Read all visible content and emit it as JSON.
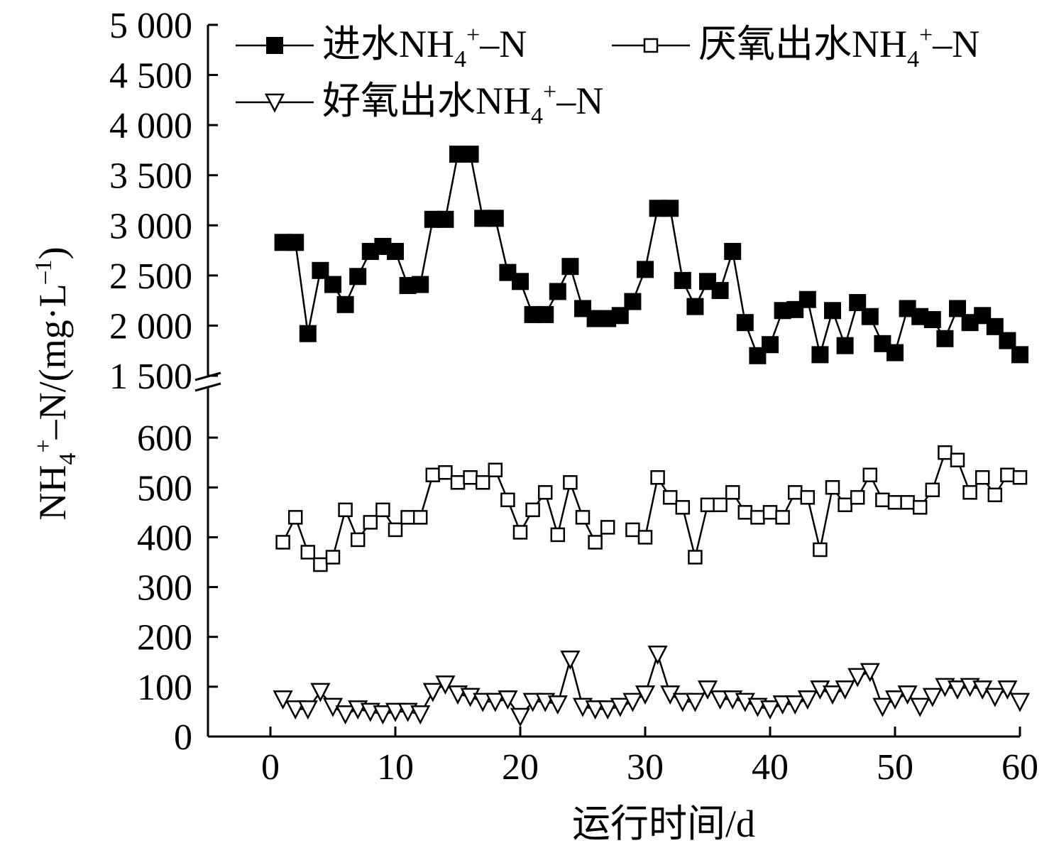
{
  "chart_data": {
    "type": "line",
    "xlabel": "运行时间/d",
    "ylabel": {
      "main": "NH",
      "sub": "4",
      "sup": "+",
      "rest": "–N/(mg·L",
      "exp": "–1",
      "close": ")"
    },
    "x_ticks": [
      "0",
      "10",
      "20",
      "30",
      "40",
      "50",
      "60"
    ],
    "xlim": [
      -5,
      60
    ],
    "y_lower": {
      "ylim": [
        0,
        700
      ],
      "ticks": [
        "0",
        "100",
        "200",
        "300",
        "400",
        "500",
        "600"
      ]
    },
    "y_upper": {
      "ylim": [
        1500,
        5000
      ],
      "ticks": [
        "1 500",
        "2 000",
        "2 500",
        "3 000",
        "3 500",
        "4 000",
        "4 500",
        "5 000"
      ]
    },
    "axis_break": true,
    "legend_position": "top-left",
    "series": [
      {
        "name": "进水NH4+–N",
        "label": {
          "main": "进水NH",
          "sub": "4",
          "sup": "+",
          "rest": "–N"
        },
        "marker": "filled-square",
        "axis": "upper",
        "x": [
          1,
          2,
          3,
          4,
          5,
          6,
          7,
          8,
          9,
          10,
          11,
          12,
          13,
          14,
          15,
          16,
          17,
          18,
          19,
          20,
          21,
          22,
          23,
          24,
          25,
          26,
          27,
          28,
          29,
          30,
          31,
          32,
          33,
          34,
          35,
          36,
          37,
          38,
          39,
          40,
          41,
          42,
          43,
          44,
          45,
          46,
          47,
          48,
          49,
          50,
          51,
          52,
          53,
          54,
          55,
          56,
          57,
          58,
          59,
          60
        ],
        "y": [
          2830,
          2830,
          1920,
          2550,
          2410,
          2210,
          2490,
          2740,
          2790,
          2740,
          2400,
          2410,
          3060,
          3060,
          3710,
          3710,
          3070,
          3070,
          2530,
          2440,
          2110,
          2110,
          2340,
          2590,
          2170,
          2070,
          2070,
          2100,
          2240,
          2560,
          3170,
          3170,
          2450,
          2190,
          2440,
          2350,
          2740,
          2030,
          1700,
          1810,
          2150,
          2160,
          2260,
          1710,
          2150,
          1800,
          2230,
          2090,
          1820,
          1730,
          2170,
          2090,
          2060,
          1870,
          2170,
          2030,
          2100,
          1990,
          1850,
          1710
        ]
      },
      {
        "name": "厌氧出水NH4+–N",
        "label": {
          "main": "厌氧出水NH",
          "sub": "4",
          "sup": "+",
          "rest": "–N"
        },
        "marker": "open-square",
        "axis": "lower",
        "x": [
          1,
          2,
          3,
          4,
          5,
          6,
          7,
          8,
          9,
          10,
          11,
          12,
          13,
          14,
          15,
          16,
          17,
          18,
          19,
          20,
          21,
          22,
          23,
          24,
          25,
          26,
          27,
          null,
          29,
          30,
          31,
          32,
          33,
          34,
          35,
          36,
          37,
          38,
          39,
          40,
          41,
          42,
          43,
          44,
          45,
          46,
          47,
          48,
          49,
          50,
          51,
          52,
          53,
          54,
          55,
          56,
          57,
          58,
          59,
          60
        ],
        "y": [
          390,
          440,
          370,
          345,
          360,
          455,
          395,
          430,
          455,
          415,
          440,
          440,
          525,
          530,
          510,
          520,
          510,
          535,
          475,
          410,
          455,
          490,
          405,
          510,
          440,
          390,
          420,
          null,
          415,
          400,
          520,
          480,
          460,
          360,
          465,
          465,
          490,
          450,
          440,
          450,
          440,
          490,
          480,
          375,
          500,
          465,
          480,
          525,
          475,
          470,
          470,
          460,
          495,
          570,
          555,
          490,
          520,
          485,
          525,
          520
        ]
      },
      {
        "name": "好氧出水NH4+–N",
        "label": {
          "main": "好氧出水NH",
          "sub": "4",
          "sup": "+",
          "rest": "–N"
        },
        "marker": "open-triangle-down",
        "axis": "lower",
        "x": [
          1,
          2,
          3,
          4,
          5,
          6,
          7,
          8,
          9,
          10,
          11,
          12,
          13,
          14,
          15,
          16,
          17,
          18,
          19,
          20,
          21,
          22,
          23,
          24,
          25,
          26,
          27,
          28,
          29,
          30,
          31,
          32,
          33,
          34,
          35,
          36,
          37,
          38,
          39,
          40,
          41,
          42,
          43,
          44,
          45,
          46,
          47,
          48,
          49,
          50,
          51,
          52,
          53,
          54,
          55,
          56,
          57,
          58,
          59,
          60
        ],
        "y": [
          75,
          55,
          55,
          90,
          60,
          45,
          55,
          50,
          45,
          50,
          50,
          45,
          90,
          105,
          85,
          80,
          70,
          70,
          75,
          40,
          70,
          70,
          65,
          155,
          60,
          55,
          55,
          60,
          70,
          85,
          165,
          85,
          70,
          70,
          95,
          75,
          75,
          70,
          60,
          55,
          65,
          65,
          75,
          95,
          85,
          95,
          120,
          130,
          60,
          75,
          85,
          60,
          80,
          100,
          95,
          100,
          95,
          80,
          95,
          70
        ]
      }
    ]
  }
}
